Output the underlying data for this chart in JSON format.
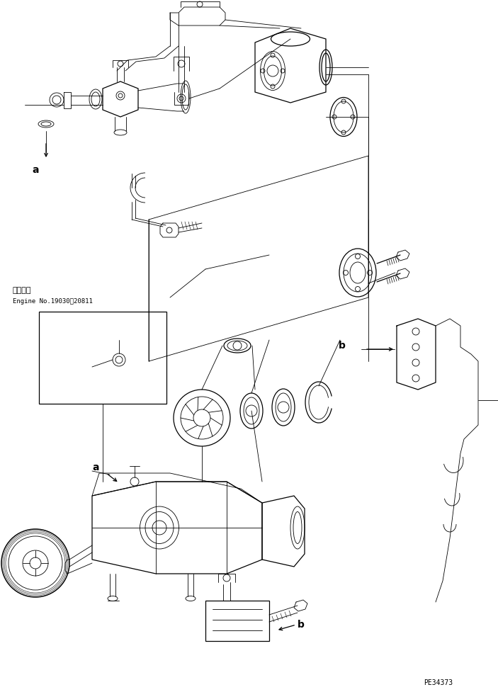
{
  "bg_color": "#ffffff",
  "line_color": "#000000",
  "engine_label1": "適用号機",
  "engine_label2": "Engine No.19030～20811",
  "label_a1": "a",
  "label_a2": "a",
  "label_b1": "b",
  "label_b2": "b",
  "part_code": "PE34373",
  "figsize": [
    7.03,
    9.77
  ],
  "dpi": 100
}
